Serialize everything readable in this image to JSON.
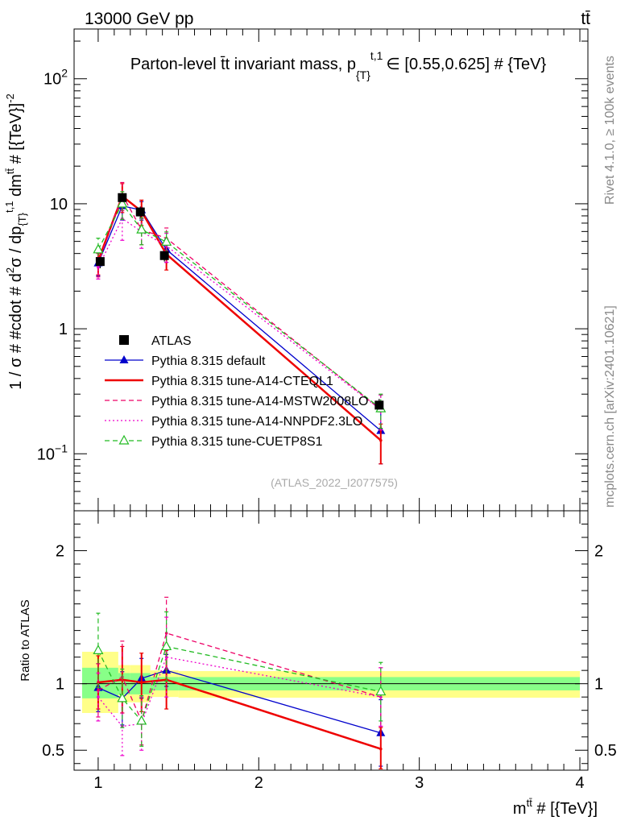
{
  "header": {
    "left": "13000 GeV pp",
    "right": "tt̄"
  },
  "side_labels": {
    "rivet": "Rivet 4.1.0, ≥ 100k events",
    "mcplots": "mcplots.cern.ch [arXiv:2401.10621]"
  },
  "colors": {
    "data": "#000000",
    "default": "#0000cc",
    "cteq": "#ee0000",
    "mstw": "#ee0066",
    "nnpdf": "#ee00cc",
    "cuetp": "#22bb22",
    "band_yellow": "#ffff88",
    "band_green": "#88ff88"
  },
  "chart_data": [
    {
      "type": "line",
      "title": "Parton-level t̄t invariant mass, p_{T}^{t,1} ∈ [0.55,0.625] # {TeV}",
      "title_parts": {
        "main": "Parton-level t̄t invariant mass, p",
        "sub": "{T}",
        "sup": "t,1",
        "tail": "∈ [0.55,0.625] # {TeV}"
      },
      "ylabel": "1 / σ # #cdot # d²σ / dp_{T}^{t,1} dm^{tt̄} # [{TeV}]^{-2}",
      "ylabel_parts": {
        "pre": "1 / σ # #cdot # d",
        "sup2": "2",
        "mid": "σ / dp",
        "sub_t": "{T}",
        "sup_t1": "t,1",
        "post_dm": " dm",
        "sup_tt": "tt̄",
        "unit": " # [{TeV}]",
        "sup_unit": "-2"
      },
      "y_scale": "log",
      "ylim": [
        0.035,
        250
      ],
      "xlim": [
        0.85,
        4.05
      ],
      "y_ticks": [
        {
          "value": 0.1,
          "base": "10",
          "exp": "−1"
        },
        {
          "value": 1,
          "base": "1",
          "exp": ""
        },
        {
          "value": 10,
          "base": "10",
          "exp": ""
        },
        {
          "value": 100,
          "base": "10",
          "exp": "2"
        }
      ],
      "watermark": "(ATLAS_2022_I2077575)",
      "legend_position": "bottom-left",
      "series": [
        {
          "name": "ATLAS",
          "color": "#000000",
          "style": "data",
          "x": [
            1.0125,
            1.15,
            1.2625,
            1.4125,
            2.75
          ],
          "xerr": [
            0.0125,
            0.0,
            0.0,
            0.0,
            0.0
          ],
          "y": [
            3.45,
            11.2,
            8.6,
            3.85,
            0.245
          ],
          "yerr": [
            0.4,
            1.1,
            0.9,
            0.4,
            0.03
          ]
        },
        {
          "name": "Pythia 8.315 default",
          "color": "#0000cc",
          "style": "solid",
          "marker": "triangle-filled",
          "x": [
            1.0,
            1.15,
            1.27,
            1.425,
            2.76
          ],
          "y": [
            3.35,
            9.6,
            8.9,
            4.3,
            0.153
          ],
          "yerr": [
            0.7,
            2.2,
            1.5,
            0.9,
            0.07
          ]
        },
        {
          "name": "Pythia 8.315 tune-A14-CTEQL1",
          "color": "#ee0000",
          "style": "solid-thick",
          "marker": "none",
          "x": [
            1.0,
            1.15,
            1.27,
            1.425,
            2.76
          ],
          "y": [
            3.5,
            11.5,
            8.7,
            3.95,
            0.128
          ],
          "yerr": [
            0.8,
            3.0,
            2.0,
            1.0,
            0.045
          ]
        },
        {
          "name": "Pythia 8.315 tune-A14-MSTW2008LO",
          "color": "#ee0066",
          "style": "dashed",
          "marker": "none",
          "x": [
            1.0,
            1.15,
            1.27,
            1.425,
            2.76
          ],
          "y": [
            3.3,
            11.8,
            6.2,
            5.3,
            0.225
          ],
          "yerr": [
            0.7,
            3.0,
            1.5,
            1.1,
            0.07
          ]
        },
        {
          "name": "Pythia 8.315 tune-A14-NNPDF2.3LO",
          "color": "#ee00cc",
          "style": "dotted",
          "marker": "none",
          "x": [
            1.0,
            1.15,
            1.27,
            1.425,
            2.76
          ],
          "y": [
            3.1,
            7.6,
            6.0,
            4.6,
            0.225
          ],
          "yerr": [
            0.6,
            2.5,
            1.6,
            1.2,
            0.07
          ]
        },
        {
          "name": "Pythia 8.315 tune-CUETP8S1",
          "color": "#22bb22",
          "style": "dashed",
          "marker": "triangle-open",
          "x": [
            1.0,
            1.15,
            1.27,
            1.425,
            2.76
          ],
          "y": [
            4.3,
            10.0,
            6.2,
            4.95,
            0.23
          ],
          "yerr": [
            1.0,
            2.5,
            1.5,
            1.0,
            0.07
          ]
        }
      ]
    },
    {
      "type": "line",
      "title": "",
      "xlabel": "m^{tt̄} # [{TeV}]",
      "xlabel_parts": {
        "pre": "m",
        "sup": "tt̄",
        "post": " # [{TeV}]"
      },
      "ylabel": "Ratio to ATLAS",
      "xlim": [
        0.85,
        4.05
      ],
      "ylim": [
        0.35,
        2.3
      ],
      "x_ticks": [
        1,
        2,
        3,
        4
      ],
      "y_ticks": [
        0.5,
        1,
        2
      ],
      "bands": [
        {
          "x": [
            0.9,
            1.125
          ],
          "yellow": [
            0.78,
            1.24
          ],
          "green": [
            0.89,
            1.12
          ]
        },
        {
          "x": [
            1.125,
            1.2
          ],
          "yellow": [
            0.86,
            1.14
          ],
          "green": [
            0.92,
            1.08
          ]
        },
        {
          "x": [
            1.2,
            1.325
          ],
          "yellow": [
            0.86,
            1.14
          ],
          "green": [
            0.92,
            1.08
          ]
        },
        {
          "x": [
            1.325,
            1.5
          ],
          "yellow": [
            0.9,
            1.1
          ],
          "green": [
            0.95,
            1.05
          ]
        },
        {
          "x": [
            1.5,
            4.0
          ],
          "yellow": [
            0.895,
            1.095
          ],
          "green": [
            0.95,
            1.05
          ]
        }
      ],
      "series": [
        {
          "name": "Pythia 8.315 default",
          "color": "#0000cc",
          "style": "solid",
          "marker": "triangle-filled",
          "x": [
            1.0,
            1.15,
            1.27,
            1.425,
            2.76
          ],
          "y": [
            0.97,
            0.89,
            1.04,
            1.1,
            0.63
          ],
          "yerr": [
            0.18,
            0.2,
            0.15,
            0.12,
            0.25
          ]
        },
        {
          "name": "Pythia 8.315 tune-A14-CTEQL1",
          "color": "#ee0000",
          "style": "solid-thick",
          "marker": "none",
          "x": [
            1.0,
            1.15,
            1.27,
            1.425,
            2.76
          ],
          "y": [
            1.01,
            1.03,
            1.01,
            1.03,
            0.51
          ],
          "yerr": [
            0.2,
            0.25,
            0.22,
            0.22,
            0.16
          ]
        },
        {
          "name": "Pythia 8.315 tune-A14-MSTW2008LO",
          "color": "#ee0066",
          "style": "dashed",
          "marker": "none",
          "x": [
            1.0,
            1.15,
            1.27,
            1.425,
            2.76
          ],
          "y": [
            0.95,
            1.05,
            0.72,
            1.38,
            0.9
          ],
          "yerr": [
            0.2,
            0.27,
            0.18,
            0.27,
            0.22
          ]
        },
        {
          "name": "Pythia 8.315 tune-A14-NNPDF2.3LO",
          "color": "#ee00cc",
          "style": "dotted",
          "marker": "none",
          "x": [
            1.0,
            1.15,
            1.27,
            1.425,
            2.76
          ],
          "y": [
            0.9,
            0.68,
            0.7,
            1.2,
            0.9
          ],
          "yerr": [
            0.18,
            0.22,
            0.2,
            0.3,
            0.22
          ]
        },
        {
          "name": "Pythia 8.315 tune-CUETP8S1",
          "color": "#22bb22",
          "style": "dashed",
          "marker": "triangle-open",
          "x": [
            1.0,
            1.15,
            1.27,
            1.425,
            2.76
          ],
          "y": [
            1.25,
            0.89,
            0.72,
            1.28,
            0.94
          ],
          "yerr": [
            0.28,
            0.22,
            0.19,
            0.26,
            0.22
          ]
        }
      ]
    }
  ]
}
